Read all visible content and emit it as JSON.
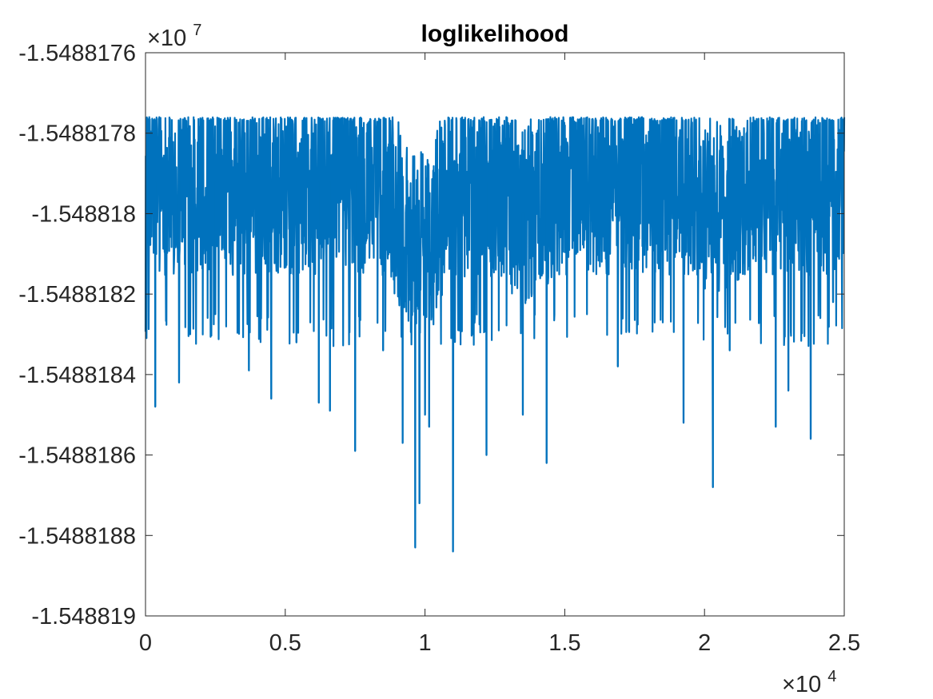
{
  "chart_data": {
    "type": "line",
    "title": "loglikelihood",
    "xlabel": "",
    "ylabel": "",
    "xlim": [
      0,
      25000
    ],
    "ylim": [
      -15488190,
      -15488176
    ],
    "x_ticks": [
      0,
      5000,
      10000,
      15000,
      20000,
      25000
    ],
    "x_tick_labels": [
      "0",
      "0.5",
      "1",
      "1.5",
      "2",
      "2.5"
    ],
    "x_exponent_label": "×10",
    "x_exponent_power": "4",
    "y_ticks": [
      -15488190,
      -15488188,
      -15488186,
      -15488184,
      -15488182,
      -15488180,
      -15488178,
      -15488176
    ],
    "y_tick_labels": [
      "-1.548819",
      "-1.5488188",
      "-1.5488186",
      "-1.5488184",
      "-1.5488182",
      "-1.548818",
      "-1.5488178",
      "-1.5488176"
    ],
    "y_exponent_label": "×10",
    "y_exponent_power": "7",
    "grid": false,
    "series": [
      {
        "name": "loglikelihood",
        "color": "#0072BD",
        "n_points": 25000,
        "upper_envelope": -15488177.6,
        "typical_low": -15488182.5,
        "spikes": [
          {
            "x": 350,
            "y": -15488184.8
          },
          {
            "x": 1200,
            "y": -15488184.2
          },
          {
            "x": 1600,
            "y": -15488183.0
          },
          {
            "x": 2500,
            "y": -15488182.5
          },
          {
            "x": 3700,
            "y": -15488183.9
          },
          {
            "x": 4500,
            "y": -15488184.6
          },
          {
            "x": 5400,
            "y": -15488183.2
          },
          {
            "x": 6200,
            "y": -15488184.7
          },
          {
            "x": 6600,
            "y": -15488184.9
          },
          {
            "x": 7500,
            "y": -15488185.9
          },
          {
            "x": 8500,
            "y": -15488183.4
          },
          {
            "x": 9200,
            "y": -15488185.7
          },
          {
            "x": 9650,
            "y": -15488188.3
          },
          {
            "x": 9800,
            "y": -15488187.2
          },
          {
            "x": 10000,
            "y": -15488185.0
          },
          {
            "x": 10150,
            "y": -15488185.3
          },
          {
            "x": 11000,
            "y": -15488188.4
          },
          {
            "x": 12200,
            "y": -15488186.0
          },
          {
            "x": 13500,
            "y": -15488185.0
          },
          {
            "x": 14350,
            "y": -15488186.2
          },
          {
            "x": 16900,
            "y": -15488183.8
          },
          {
            "x": 19250,
            "y": -15488185.2
          },
          {
            "x": 20300,
            "y": -15488186.8
          },
          {
            "x": 20900,
            "y": -15488183.4
          },
          {
            "x": 22550,
            "y": -15488185.3
          },
          {
            "x": 23000,
            "y": -15488184.4
          },
          {
            "x": 23800,
            "y": -15488185.6
          },
          {
            "x": 24600,
            "y": -15488182.2
          }
        ]
      }
    ]
  }
}
